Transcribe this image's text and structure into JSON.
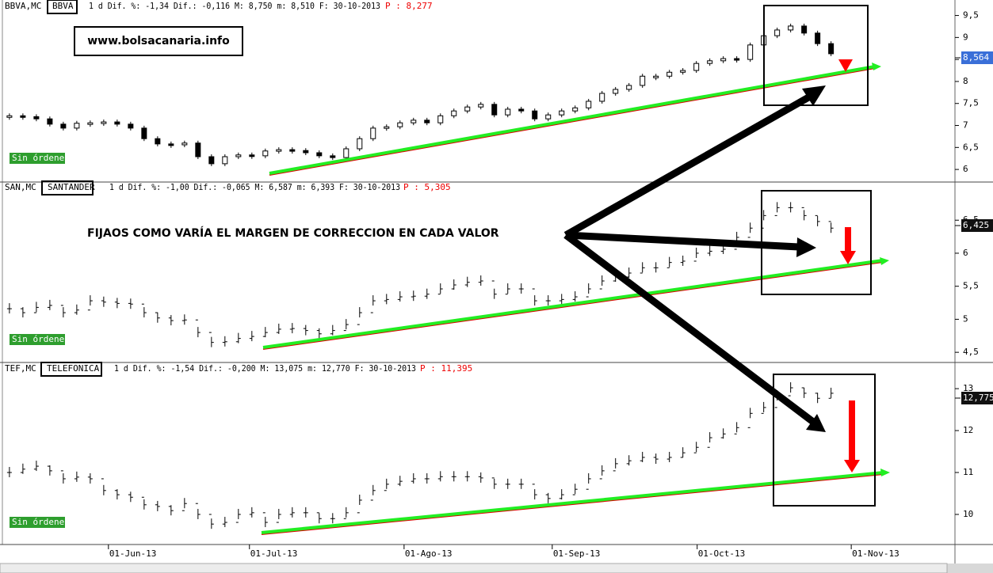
{
  "watermark": "www.bolsacanaria.info",
  "annotation": "FIJAOS COMO VARÍA EL MARGEN DE CORRECCION EN CADA VALOR",
  "x_axis": {
    "xlim": [
      -0.7,
      70.2
    ],
    "xticks": [
      {
        "value": 7.35,
        "label": "01-Jun-13"
      },
      {
        "value": 17.82,
        "label": "01-Jul-13"
      },
      {
        "value": 29.3,
        "label": "01-Ago-13"
      },
      {
        "value": 40.3,
        "label": "01-Sep-13"
      },
      {
        "value": 51.06,
        "label": "01-Oct-13"
      },
      {
        "value": 62.5,
        "label": "01-Nov-13"
      }
    ]
  },
  "chart_data": [
    {
      "type": "candlestick",
      "symbol": "BBVA,MC",
      "ticker": "BBVA",
      "info": "1 d Dif. %: -1,34 Dif.: -0,116 M: 8,750 m: 8,510 F: 30-10-2013",
      "price_label": "P : 8,277",
      "last_label": "8,564",
      "status": "Sin órdenes",
      "ylim": [
        5.75,
        9.6
      ],
      "yticks": [
        6,
        {
          "value": 6.5,
          "label": "6,5"
        },
        7,
        {
          "value": 7.5,
          "label": "7,5"
        },
        8,
        {
          "value": 8.5,
          "label": "8,5"
        },
        9,
        {
          "value": 9.5,
          "label": "9,5"
        }
      ],
      "values": [
        7.22,
        7.2,
        7.15,
        7.03,
        6.94,
        7.05,
        7.06,
        7.08,
        7.03,
        6.94,
        6.7,
        6.58,
        6.56,
        6.6,
        6.29,
        6.13,
        6.29,
        6.33,
        6.31,
        6.42,
        6.45,
        6.43,
        6.38,
        6.31,
        6.27,
        6.47,
        6.7,
        6.94,
        6.97,
        7.06,
        7.12,
        7.06,
        7.22,
        7.33,
        7.42,
        7.48,
        7.24,
        7.37,
        7.33,
        7.15,
        7.24,
        7.33,
        7.4,
        7.55,
        7.73,
        7.82,
        7.91,
        8.12,
        8.12,
        8.21,
        8.25,
        8.41,
        8.47,
        8.52,
        8.5,
        8.83,
        9.04,
        9.17,
        9.26,
        9.1,
        8.86,
        8.63
      ]
    },
    {
      "type": "ohlc",
      "symbol": "SAN,MC",
      "ticker": "SANTANDER",
      "info": "1 d Dif. %: -1,00 Dif.: -0,065 M: 6,587 m: 6,393 F: 30-10-2013",
      "price_label": "P : 5,305",
      "last_label": "6,425",
      "status": "Sin órdenes",
      "ylim": [
        4.37,
        6.91
      ],
      "yticks": [
        {
          "value": 4.5,
          "label": "4,5"
        },
        5,
        {
          "value": 5.5,
          "label": "5,5"
        },
        6,
        {
          "value": 6.5,
          "label": "6,5"
        }
      ],
      "values": [
        5.16,
        5.1,
        5.18,
        5.21,
        5.1,
        5.14,
        5.28,
        5.26,
        5.24,
        5.23,
        5.1,
        5.02,
        4.98,
        4.99,
        4.8,
        4.65,
        4.66,
        4.71,
        4.74,
        4.8,
        4.85,
        4.86,
        4.83,
        4.78,
        4.83,
        4.92,
        5.1,
        5.28,
        5.3,
        5.34,
        5.35,
        5.38,
        5.46,
        5.52,
        5.56,
        5.58,
        5.38,
        5.46,
        5.46,
        5.28,
        5.28,
        5.3,
        5.34,
        5.46,
        5.58,
        5.64,
        5.7,
        5.78,
        5.78,
        5.86,
        5.88,
        6.0,
        6.03,
        6.06,
        6.24,
        6.38,
        6.57,
        6.69,
        6.69,
        6.57,
        6.48,
        6.38
      ]
    },
    {
      "type": "ohlc",
      "symbol": "TEF,MC",
      "ticker": "TELEFONICA",
      "info": "1 d Dif. %: -1,54 Dif.: -0,200 M: 13,075 m: 12,770 F: 30-10-2013",
      "price_label": "P : 11,395",
      "last_label": "12,775",
      "status": "Sin órdenes",
      "ylim": [
        9.32,
        13.36
      ],
      "yticks": [
        10,
        11,
        12,
        13
      ],
      "values": [
        11.0,
        11.08,
        11.15,
        11.04,
        10.85,
        10.89,
        10.85,
        10.57,
        10.47,
        10.41,
        10.23,
        10.19,
        10.09,
        10.26,
        10.0,
        9.77,
        9.81,
        10.0,
        10.04,
        9.81,
        10.0,
        10.04,
        10.04,
        9.9,
        9.9,
        10.04,
        10.34,
        10.57,
        10.72,
        10.79,
        10.85,
        10.85,
        10.9,
        10.9,
        10.9,
        10.87,
        10.72,
        10.72,
        10.72,
        10.47,
        10.38,
        10.47,
        10.6,
        10.85,
        11.04,
        11.21,
        11.28,
        11.36,
        11.32,
        11.36,
        11.47,
        11.6,
        11.83,
        11.92,
        12.07,
        12.41,
        12.55,
        12.83,
        13.02,
        12.89,
        12.77,
        12.89
      ]
    }
  ]
}
